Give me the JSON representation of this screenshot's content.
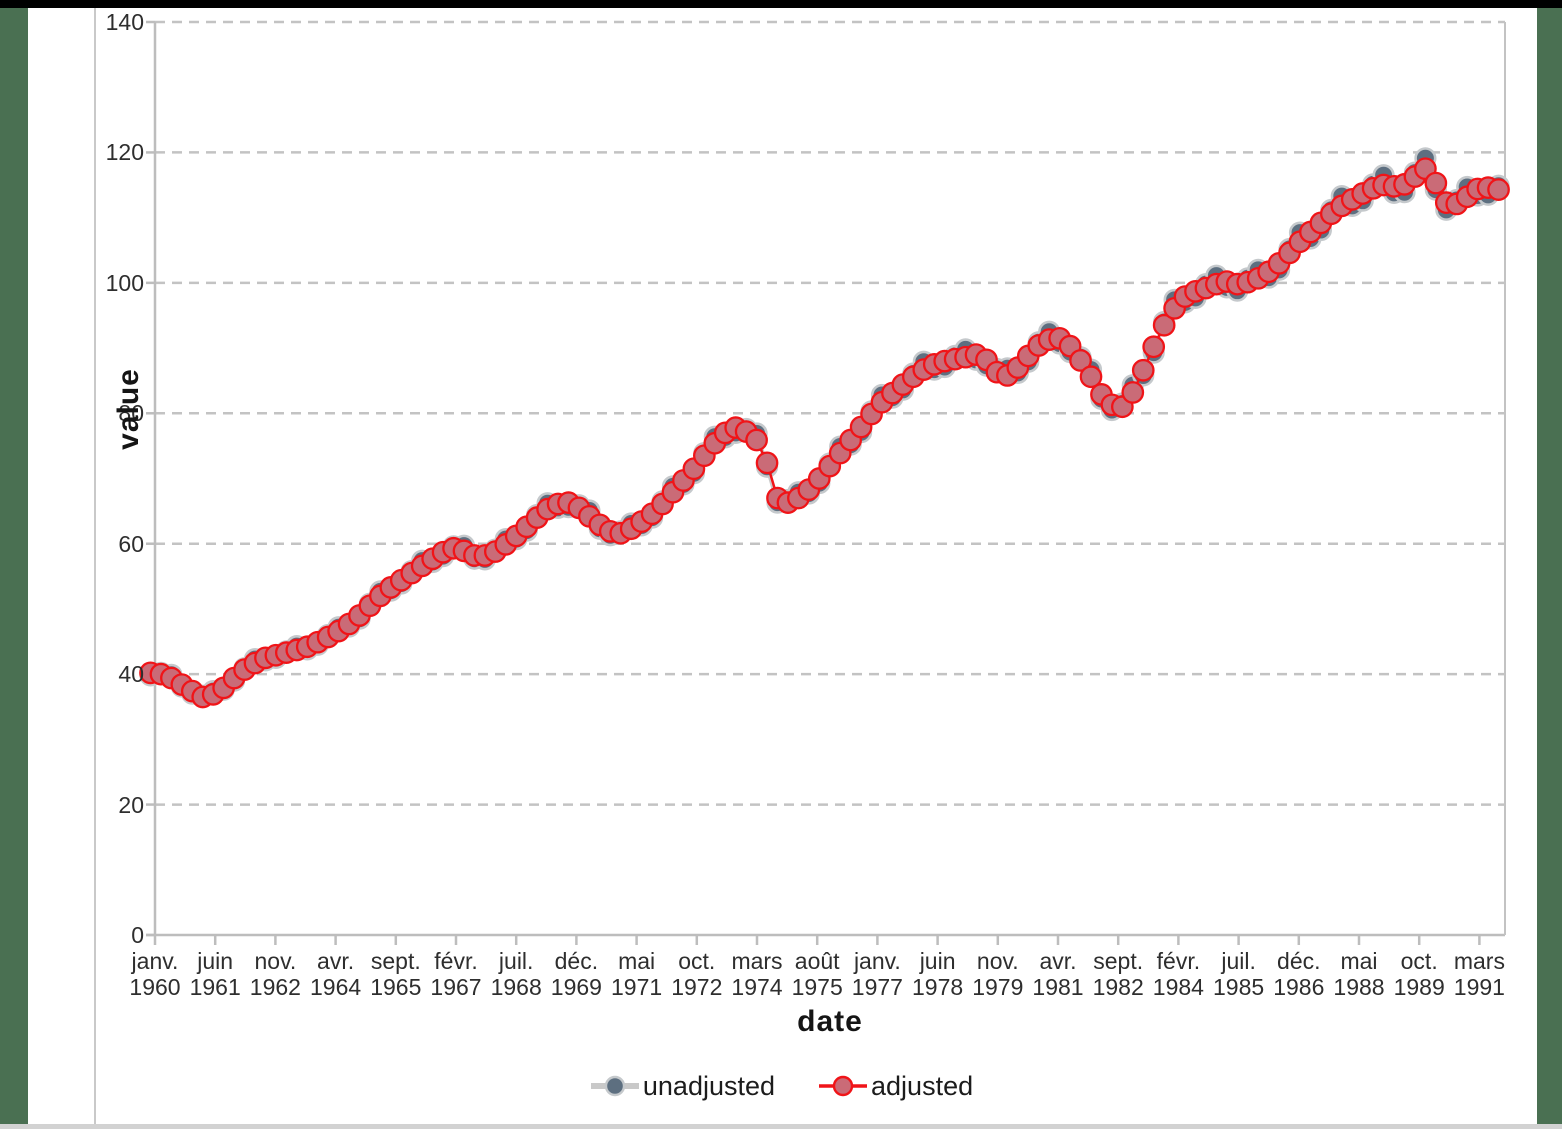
{
  "frame": {
    "top_bar_color": "#000000",
    "bottom_bar_color": "#d2d2d2",
    "side_band_color": "#4a7052",
    "panel_line_color": "#c9c9c9",
    "background_color": "#ffffff"
  },
  "axes": {
    "x_title": "date",
    "y_title": "value"
  },
  "chart_data": {
    "type": "line",
    "title": "",
    "xlabel": "date",
    "ylabel": "value",
    "ylim": [
      0,
      140
    ],
    "y_ticks": [
      0,
      20,
      40,
      60,
      80,
      100,
      120,
      140
    ],
    "grid": "horizontal-dashed",
    "grid_color": "#c3c3c3",
    "axis_color": "#bdbdbd",
    "legend_position": "bottom-center",
    "x_range": {
      "start": "1960-Q1",
      "end": "1992-Q2",
      "frequency": "quarterly",
      "points": 130
    },
    "x_tick_labels": [
      {
        "month": "janv.",
        "year": "1960"
      },
      {
        "month": "juin",
        "year": "1961"
      },
      {
        "month": "nov.",
        "year": "1962"
      },
      {
        "month": "avr.",
        "year": "1964"
      },
      {
        "month": "sept.",
        "year": "1965"
      },
      {
        "month": "févr.",
        "year": "1967"
      },
      {
        "month": "juil.",
        "year": "1968"
      },
      {
        "month": "déc.",
        "year": "1969"
      },
      {
        "month": "mai",
        "year": "1971"
      },
      {
        "month": "oct.",
        "year": "1972"
      },
      {
        "month": "mars",
        "year": "1974"
      },
      {
        "month": "août",
        "year": "1975"
      },
      {
        "month": "janv.",
        "year": "1977"
      },
      {
        "month": "juin",
        "year": "1978"
      },
      {
        "month": "nov.",
        "year": "1979"
      },
      {
        "month": "avr.",
        "year": "1981"
      },
      {
        "month": "sept.",
        "year": "1982"
      },
      {
        "month": "févr.",
        "year": "1984"
      },
      {
        "month": "juil.",
        "year": "1985"
      },
      {
        "month": "déc.",
        "year": "1986"
      },
      {
        "month": "mai",
        "year": "1988"
      },
      {
        "month": "oct.",
        "year": "1989"
      },
      {
        "month": "mars",
        "year": "1991"
      }
    ],
    "series": [
      {
        "name": "unadjusted",
        "line_color": "#c9c9c9",
        "marker_fill": "#5d6f80",
        "marker_stroke": "#c5c9cc",
        "values": [
          39.8,
          40.2,
          39.9,
          38.1,
          37.0,
          36.7,
          37.4,
          37.6,
          39.0,
          40.9,
          42.3,
          42.1,
          42.5,
          43.5,
          44.3,
          43.8,
          44.5,
          46.0,
          47.2,
          47.3,
          48.5,
          50.8,
          52.7,
          52.8,
          53.9,
          55.8,
          57.4,
          57.2,
          58.1,
          59.6,
          59.7,
          57.7,
          57.6,
          59.1,
          60.7,
          60.7,
          62.0,
          64.4,
          66.2,
          65.5,
          65.6,
          65.9,
          65.1,
          62.3,
          61.3,
          61.9,
          63.1,
          62.8,
          64.0,
          66.5,
          68.8,
          69.1,
          70.8,
          73.9,
          76.4,
          76.3,
          77.0,
          77.6,
          76.9,
          71.8,
          66.3,
          66.7,
          67.9,
          67.7,
          69.3,
          72.3,
          74.9,
          75.2,
          77.1,
          80.3,
          82.8,
          82.4,
          83.6,
          86.1,
          87.9,
          86.7,
          87.1,
          88.8,
          89.8,
          88.2,
          87.3,
          86.8,
          86.9,
          86.2,
          87.9,
          90.9,
          92.5,
          90.7,
          89.4,
          88.6,
          86.7,
          82.2,
          80.5,
          81.5,
          84.3,
          85.8,
          89.3,
          94.0,
          97.4,
          97.0,
          97.7,
          99.8,
          101.1,
          99.3,
          98.8,
          100.7,
          102.0,
          100.8,
          102.0,
          105.2,
          107.7,
          106.8,
          108.1,
          111.2,
          113.3,
          111.8,
          112.6,
          115.1,
          116.5,
          113.8,
          113.9,
          116.9,
          119.1,
          114.3,
          111.2,
          112.7,
          114.7,
          113.4,
          113.5,
          114.9
        ]
      },
      {
        "name": "adjusted",
        "line_color": "#f01418",
        "marker_fill": "#ca6b77",
        "marker_stroke": "#f01418",
        "values": [
          40.2,
          40.0,
          39.4,
          38.4,
          37.4,
          36.5,
          36.9,
          37.9,
          39.4,
          40.7,
          41.7,
          42.5,
          42.9,
          43.3,
          43.7,
          44.2,
          44.9,
          45.7,
          46.6,
          47.7,
          49.0,
          50.5,
          52.0,
          53.3,
          54.4,
          55.5,
          56.6,
          57.7,
          58.7,
          59.3,
          58.9,
          58.2,
          58.2,
          58.8,
          59.9,
          61.2,
          62.6,
          64.0,
          65.3,
          66.1,
          66.3,
          65.5,
          64.2,
          62.9,
          61.9,
          61.6,
          62.3,
          63.4,
          64.6,
          66.1,
          67.9,
          69.7,
          71.5,
          73.5,
          75.4,
          77.0,
          77.8,
          77.2,
          75.9,
          72.4,
          67.0,
          66.3,
          67.0,
          68.3,
          70.0,
          71.9,
          73.9,
          75.9,
          77.9,
          79.9,
          81.7,
          83.1,
          84.4,
          85.6,
          86.7,
          87.5,
          88.0,
          88.3,
          88.6,
          89.0,
          88.2,
          86.3,
          85.8,
          87.0,
          88.8,
          90.4,
          91.3,
          91.5,
          90.3,
          88.1,
          85.6,
          82.9,
          81.3,
          81.0,
          83.2,
          86.6,
          90.2,
          93.5,
          96.1,
          97.9,
          98.7,
          99.2,
          99.8,
          100.2,
          99.8,
          100.1,
          100.7,
          101.7,
          103.0,
          104.6,
          106.3,
          107.8,
          109.2,
          110.6,
          111.8,
          112.8,
          113.7,
          114.5,
          115.0,
          114.8,
          115.1,
          116.3,
          117.5,
          115.3,
          112.3,
          112.1,
          113.2,
          114.4,
          114.6,
          114.3
        ]
      }
    ]
  },
  "legend": {
    "items": [
      {
        "label": "unadjusted"
      },
      {
        "label": "adjusted"
      }
    ]
  }
}
